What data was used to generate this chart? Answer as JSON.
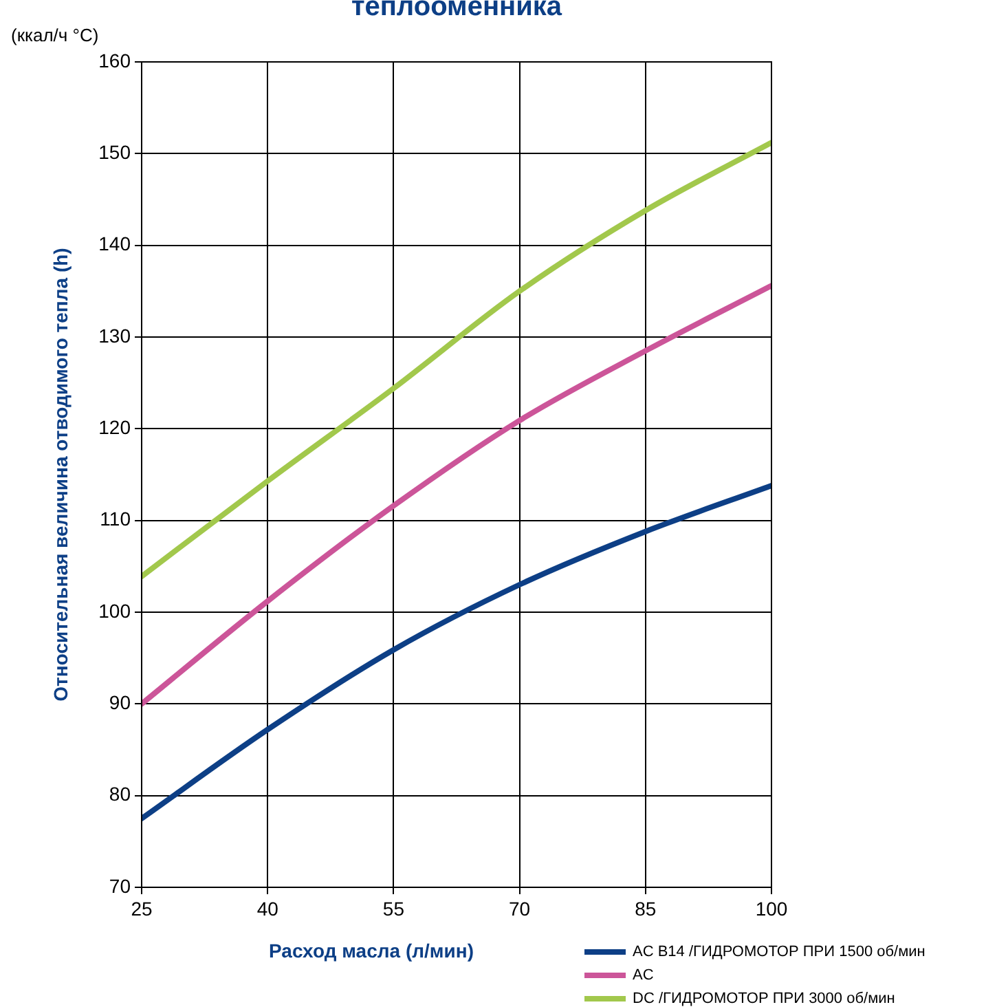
{
  "chart_data": {
    "type": "line",
    "title": "теплооменника",
    "xlabel": "Расход  масла  (л/мин)",
    "ylabel": "Относительная величина отводимого тепла (h)",
    "annotations": [
      "(ккал/ч °C)"
    ],
    "x": [
      25,
      40,
      55,
      70,
      85,
      100
    ],
    "series": [
      {
        "name": "AC B14 /ГИДРОМОТОР ПРИ 1500 об/мин",
        "color": "#0d3f86",
        "values": [
          77.5,
          87.2,
          95.9,
          103,
          108.8,
          113.8
        ]
      },
      {
        "name": "AC",
        "color": "#cc5599",
        "values": [
          90,
          101.2,
          111.6,
          120.9,
          128.5,
          135.6
        ]
      },
      {
        "name": "DC /ГИДРОМОТОР ПРИ 3000 об/мин",
        "color": "#a2c84c",
        "values": [
          103.9,
          114.3,
          124.4,
          135,
          143.8,
          151.2
        ]
      }
    ],
    "xlim": [
      25,
      100
    ],
    "xticks": [
      25,
      40,
      55,
      70,
      85,
      100
    ],
    "ylim": [
      70,
      160
    ],
    "yticks": [
      70,
      80,
      90,
      100,
      110,
      120,
      130,
      140,
      150,
      160
    ],
    "grid": true,
    "legend": "bottom right",
    "marker": "none",
    "line_style": "solid"
  }
}
